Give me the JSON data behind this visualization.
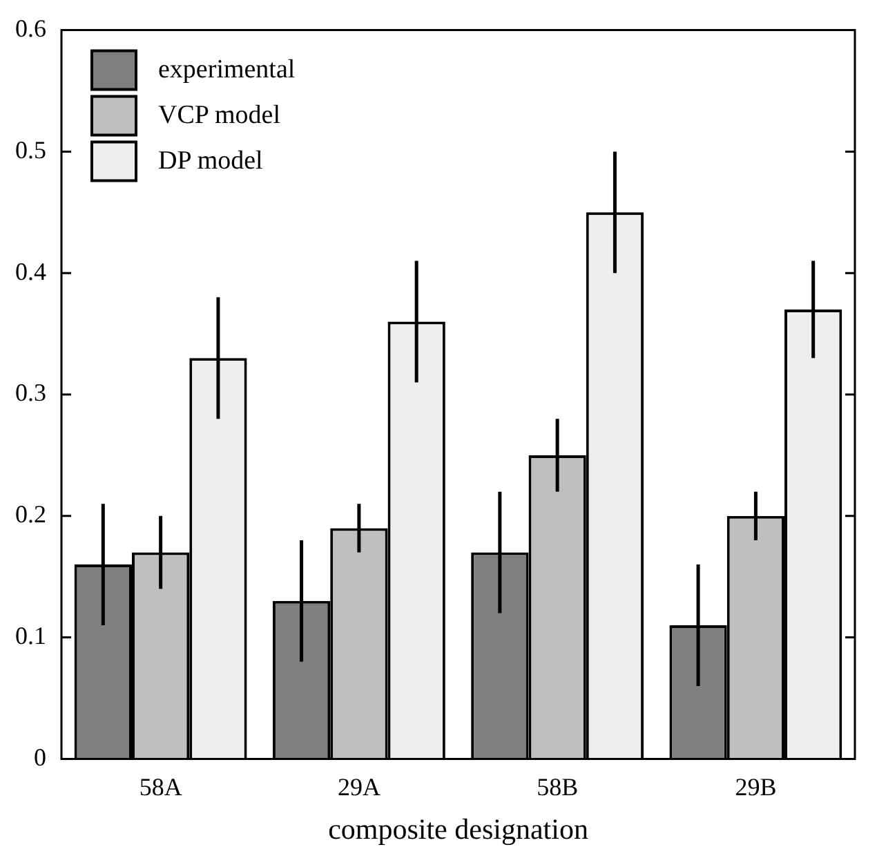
{
  "chart_data": {
    "type": "bar",
    "xlabel": "composite designation",
    "categories": [
      "58A",
      "29A",
      "58B",
      "29B"
    ],
    "series": [
      {
        "name": "experimental",
        "color": "#7f7f7f",
        "values": [
          0.16,
          0.13,
          0.17,
          0.11
        ],
        "errors": [
          0.05,
          0.05,
          0.05,
          0.05
        ]
      },
      {
        "name": "VCP model",
        "color": "#bfbfbf",
        "values": [
          0.17,
          0.19,
          0.25,
          0.2
        ],
        "errors": [
          0.03,
          0.02,
          0.03,
          0.02
        ]
      },
      {
        "name": "DP model",
        "color": "#eeeeee",
        "values": [
          0.33,
          0.36,
          0.45,
          0.37
        ],
        "errors": [
          0.05,
          0.05,
          0.05,
          0.04
        ]
      }
    ],
    "ylim": [
      0,
      0.6
    ],
    "yticks": [
      0,
      0.1,
      0.2,
      0.3,
      0.4,
      0.5,
      0.6
    ],
    "grid": false,
    "legend": "top left"
  }
}
